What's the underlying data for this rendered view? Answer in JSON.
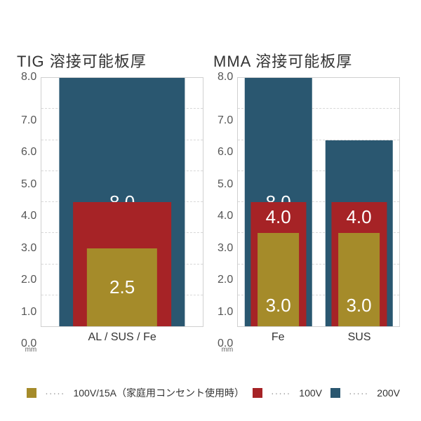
{
  "ylim": [
    0,
    8
  ],
  "ytick_step": 1,
  "yticks": [
    "8.0",
    "7.0",
    "6.0",
    "5.0",
    "4.0",
    "3.0",
    "2.0",
    "1.0",
    "0.0"
  ],
  "mm_unit": "mm",
  "grid_color": "#d8d8d8",
  "background_color": "#ffffff",
  "border_color": "#d0d0d0",
  "title_fontsize": 22,
  "tick_fontsize": 16,
  "barlabel_fontsize": 26,
  "legend_fontsize": 14,
  "colors": {
    "series_a": "#a58b2a",
    "series_b": "#a62326",
    "series_c": "#2a5770"
  },
  "legend": {
    "separator": "·····",
    "items": [
      {
        "color_key": "series_a",
        "label": "100V/15A（家庭用コンセント使用時）"
      },
      {
        "color_key": "series_b",
        "label": "100V"
      },
      {
        "color_key": "series_c",
        "label": "200V"
      }
    ]
  },
  "charts": [
    {
      "title": "TIG 溶接可能板厚",
      "categories": [
        {
          "label": "AL / SUS / Fe",
          "group_width_pct": 78,
          "bars": [
            {
              "series": "series_c",
              "value": 8.0,
              "display": "8.0",
              "width_pct": 100,
              "label_pos": "center"
            },
            {
              "series": "series_b",
              "value": 4.0,
              "display": "4.0",
              "width_pct": 78,
              "label_pos": "center"
            },
            {
              "series": "series_a",
              "value": 2.5,
              "display": "2.5",
              "width_pct": 56,
              "label_pos": "center"
            }
          ]
        }
      ]
    },
    {
      "title": "MMA 溶接可能板厚",
      "categories": [
        {
          "label": "Fe",
          "group_width_pct": 42,
          "bars": [
            {
              "series": "series_c",
              "value": 8.0,
              "display": "8.0",
              "width_pct": 100,
              "label_pos": "center"
            },
            {
              "series": "series_b",
              "value": 4.0,
              "display": "4.0",
              "width_pct": 82,
              "label_pos": "top"
            },
            {
              "series": "series_a",
              "value": 3.0,
              "display": "3.0",
              "width_pct": 62,
              "label_pos": "low"
            }
          ]
        },
        {
          "label": "SUS",
          "group_width_pct": 42,
          "bars": [
            {
              "series": "series_c",
              "value": 6.0,
              "display": "6.0",
              "width_pct": 100,
              "label_pos": "center"
            },
            {
              "series": "series_b",
              "value": 4.0,
              "display": "4.0",
              "width_pct": 82,
              "label_pos": "top"
            },
            {
              "series": "series_a",
              "value": 3.0,
              "display": "3.0",
              "width_pct": 62,
              "label_pos": "low"
            }
          ]
        }
      ]
    }
  ]
}
